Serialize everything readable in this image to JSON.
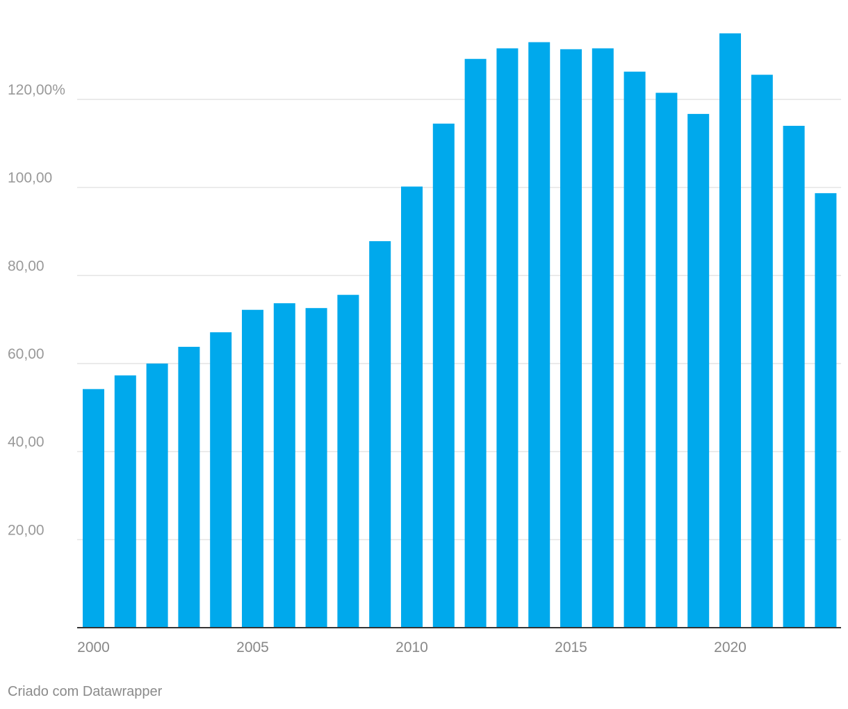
{
  "chart_data": {
    "type": "bar",
    "categories": [
      "2000",
      "2001",
      "2002",
      "2003",
      "2004",
      "2005",
      "2006",
      "2007",
      "2008",
      "2009",
      "2010",
      "2011",
      "2012",
      "2013",
      "2014",
      "2015",
      "2016",
      "2017",
      "2018",
      "2019",
      "2020",
      "2021",
      "2022",
      "2023"
    ],
    "values": [
      54.2,
      57.3,
      60.0,
      63.8,
      67.1,
      72.2,
      73.7,
      72.6,
      75.6,
      87.8,
      100.2,
      114.5,
      129.2,
      131.6,
      133.0,
      131.4,
      131.6,
      126.3,
      121.5,
      116.7,
      135.0,
      125.6,
      114.0,
      98.7
    ],
    "x_tick_labels": [
      "2000",
      "2005",
      "2010",
      "2015",
      "2020"
    ],
    "y_ticks": [
      20,
      40,
      60,
      80,
      100,
      120
    ],
    "y_tick_labels": [
      "20,00",
      "40,00",
      "60,00",
      "80,00",
      "100,00",
      "120,00%"
    ],
    "ylim": [
      0,
      135
    ],
    "grid": true,
    "bar_color": "#00a9ec",
    "title": "",
    "xlabel": "",
    "ylabel": ""
  },
  "footer": {
    "credit": "Criado com Datawrapper"
  }
}
